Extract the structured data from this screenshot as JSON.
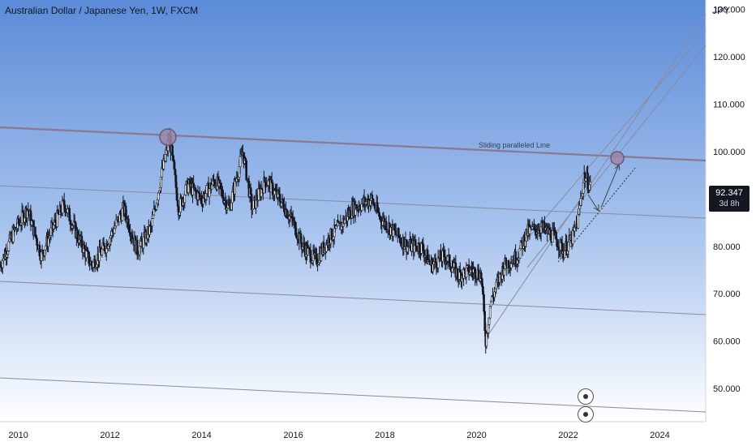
{
  "header": {
    "title": "Australian Dollar / Japanese Yen, 1W, FXCM"
  },
  "axis": {
    "unit": "JPY",
    "x_labels": [
      "2010",
      "2012",
      "2014",
      "2016",
      "2018",
      "2020",
      "2022",
      "2024"
    ],
    "y_labels": [
      "130.000",
      "120.000",
      "110.000",
      "100.000",
      "80.000",
      "70.000",
      "60.000",
      "50.000"
    ]
  },
  "price_badge": {
    "price": "92.347",
    "countdown": "3d 8h"
  },
  "annotation": {
    "label": "Sliding paralleled Line"
  },
  "colors": {
    "bg_top": "#5b8bd8",
    "bg_bottom": "#ffffff",
    "candle": "#131722",
    "line": "#7a6f8a",
    "marker": "#9a86a8"
  },
  "chart_data": {
    "type": "line",
    "title": "Australian Dollar / Japanese Yen, 1W, FXCM",
    "ylabel": "JPY",
    "ylim": [
      43,
      132
    ],
    "xlim": [
      2009.6,
      2025.0
    ],
    "series": [
      {
        "x": [
          2009.6,
          2009.9,
          2010.2,
          2010.5,
          2010.8,
          2011.0,
          2011.3,
          2011.6,
          2011.9,
          2012.1,
          2012.3,
          2012.6,
          2012.9,
          2013.1,
          2013.3,
          2013.5,
          2013.7,
          2014.0,
          2014.3,
          2014.6,
          2014.9,
          2015.1,
          2015.4,
          2015.7,
          2016.0,
          2016.2,
          2016.5,
          2016.8,
          2017.0,
          2017.3,
          2017.7,
          2017.9,
          2018.2,
          2018.5,
          2018.8,
          2019.0,
          2019.3,
          2019.6,
          2019.9,
          2020.1,
          2020.2,
          2020.3,
          2020.6,
          2020.9,
          2021.1,
          2021.4,
          2021.7,
          2021.9,
          2022.1,
          2022.2,
          2022.35,
          2022.5
        ],
        "values": [
          76,
          83,
          88,
          78,
          85,
          89,
          82,
          76,
          80,
          84,
          88,
          79,
          84,
          94,
          103,
          88,
          93,
          90,
          94,
          88,
          100,
          88,
          94,
          90,
          85,
          80,
          77,
          82,
          84,
          88,
          90,
          86,
          83,
          80,
          80,
          76,
          78,
          74,
          75,
          74,
          60,
          68,
          76,
          78,
          83,
          84,
          82,
          79,
          82,
          85,
          95,
          92.347
        ]
      }
    ]
  }
}
